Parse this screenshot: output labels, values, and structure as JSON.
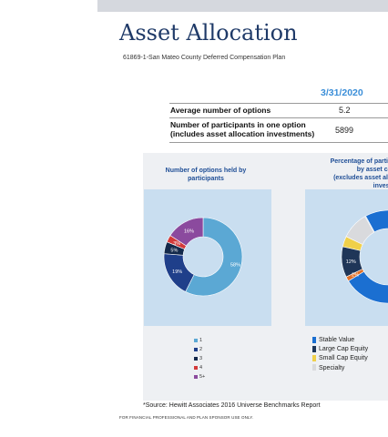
{
  "page": {
    "title": "Asset Allocation",
    "subtitle": "61869-1-San Mateo County Deferred Compensation Plan",
    "source": "*Source: Hewitt Associates 2016 Universe Benchmarks Report",
    "footer": "FOR FINANCIAL PROFESSIONAL AND PLAN SPONSOR USE ONLY."
  },
  "table": {
    "date_header": "3/31/2020",
    "rows": [
      {
        "label": "Average number of options",
        "value": "5.2"
      },
      {
        "label_line1": "Number of participants in one option",
        "label_line2": "(includes asset allocation investments)",
        "value": "5899"
      }
    ]
  },
  "colors": {
    "c1": "#5ba8d4",
    "c2": "#1f3f8a",
    "c3": "#13294b",
    "c4": "#d33a3a",
    "c5": "#8b4a9e",
    "stable_value": "#1b6fd1",
    "large_cap": "#1f3658",
    "small_cap": "#f0d04a",
    "specialty": "#d9dadd",
    "orange": "#e07028"
  },
  "chart_data": [
    {
      "type": "pie",
      "title": "Number of options held by participants",
      "categories": [
        "1",
        "2",
        "3",
        "4",
        "5+"
      ],
      "values": [
        58,
        19,
        5,
        3,
        16
      ],
      "data_labels": [
        "58%",
        "19%",
        "5%",
        "3%",
        "16%"
      ],
      "legend_position": "bottom"
    },
    {
      "type": "pie",
      "title_lines": [
        "Percentage of participa",
        "by asset categ",
        "(excludes asset alloca",
        "investme"
      ],
      "categories": [
        "Stable Value",
        "Large Cap Equity",
        "Small Cap Equity",
        "Specialty"
      ],
      "visible_data_labels": [
        "12%",
        "2%"
      ],
      "legend_position": "bottom"
    }
  ]
}
